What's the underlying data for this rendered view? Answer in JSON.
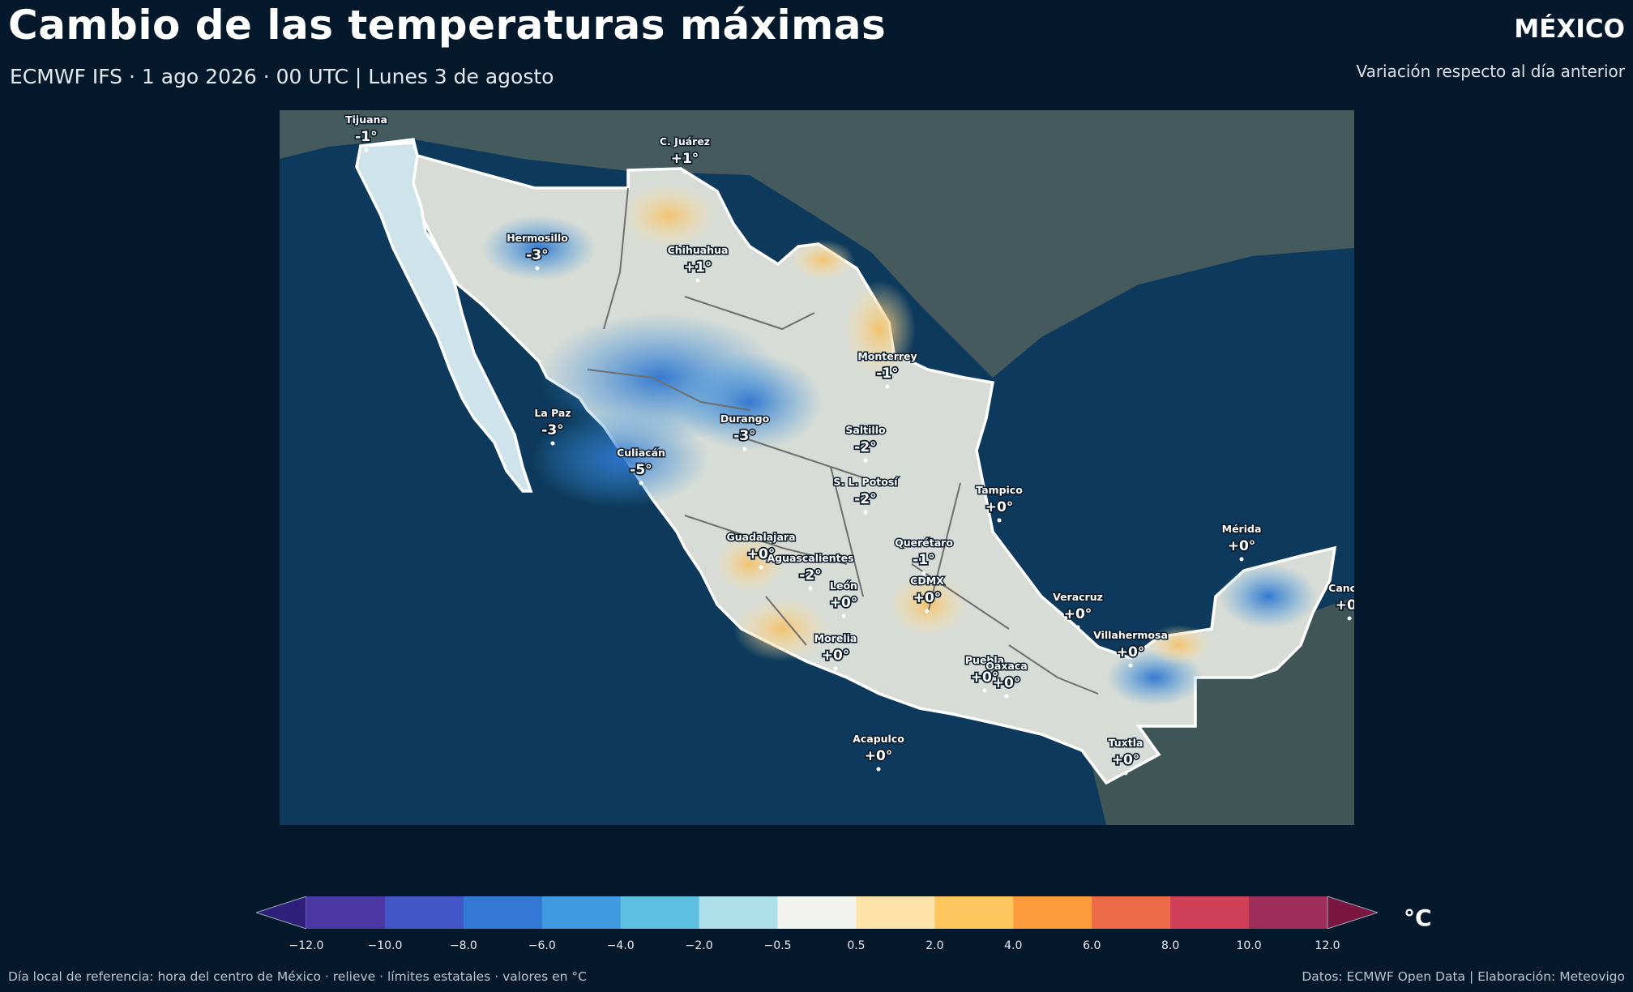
{
  "header": {
    "title": "Cambio de las temperaturas máximas",
    "subtitle": "ECMWF IFS · 1 ago 2026 · 00 UTC  |  Lunes 3 de agosto",
    "country": "MÉXICO",
    "variation_note": "Variación respecto al día anterior"
  },
  "map": {
    "colors": {
      "ocean": "#0d3a5c",
      "land_outside": "#455a5c",
      "border": "#ffffff",
      "state_lines": "#6e6e6e"
    },
    "cities": [
      {
        "name": "Tijuana",
        "value": "-1°"
      },
      {
        "name": "C. Juárez",
        "value": "+1°"
      },
      {
        "name": "Hermosillo",
        "value": "-3°"
      },
      {
        "name": "Chihuahua",
        "value": "+1°"
      },
      {
        "name": "Monterrey",
        "value": "-1°"
      },
      {
        "name": "La Paz",
        "value": "-3°"
      },
      {
        "name": "Durango",
        "value": "-3°"
      },
      {
        "name": "Saltillo",
        "value": "-2°"
      },
      {
        "name": "Culiacán",
        "value": "-5°"
      },
      {
        "name": "Tampico",
        "value": "+0°"
      },
      {
        "name": "S. L. Potosí",
        "value": "-2°"
      },
      {
        "name": "Mérida",
        "value": "+0°"
      },
      {
        "name": "Guadalajara",
        "value": "+0°"
      },
      {
        "name": "Querétaro",
        "value": "-1°"
      },
      {
        "name": "Aguascalientes",
        "value": "-2°"
      },
      {
        "name": "León",
        "value": "+0°"
      },
      {
        "name": "CDMX",
        "value": "+0°"
      },
      {
        "name": "Cancún",
        "value": "+0°"
      },
      {
        "name": "Veracruz",
        "value": "+0°"
      },
      {
        "name": "Villahermosa",
        "value": "+0°"
      },
      {
        "name": "Morelia",
        "value": "+0°"
      },
      {
        "name": "Puebla",
        "value": "+0°"
      },
      {
        "name": "Oaxaca",
        "value": "+0°"
      },
      {
        "name": "Acapulco",
        "value": "+0°"
      },
      {
        "name": "Tuxtla",
        "value": "+0°"
      }
    ]
  },
  "colorbar": {
    "unit": "°C",
    "ticks": [
      "−12.0",
      "−10.0",
      "−8.0",
      "−6.0",
      "−4.0",
      "−2.0",
      "−0.5",
      "0.5",
      "2.0",
      "4.0",
      "6.0",
      "8.0",
      "10.0",
      "12.0"
    ],
    "colors": [
      "#2e1f7a",
      "#4a37a3",
      "#4356c7",
      "#3478d6",
      "#3f9ae0",
      "#5ec0e0",
      "#aee0ec",
      "#f2f3ef",
      "#fde3a8",
      "#fdc65e",
      "#fb9b3e",
      "#ee6b4a",
      "#cf3f58",
      "#9e2e5a",
      "#7a1640"
    ]
  },
  "footer": {
    "left": "Día local de referencia: hora del centro de México · relieve · límites estatales · valores en °C",
    "right": "Datos: ECMWF Open Data | Elaboración: Meteovigo"
  }
}
